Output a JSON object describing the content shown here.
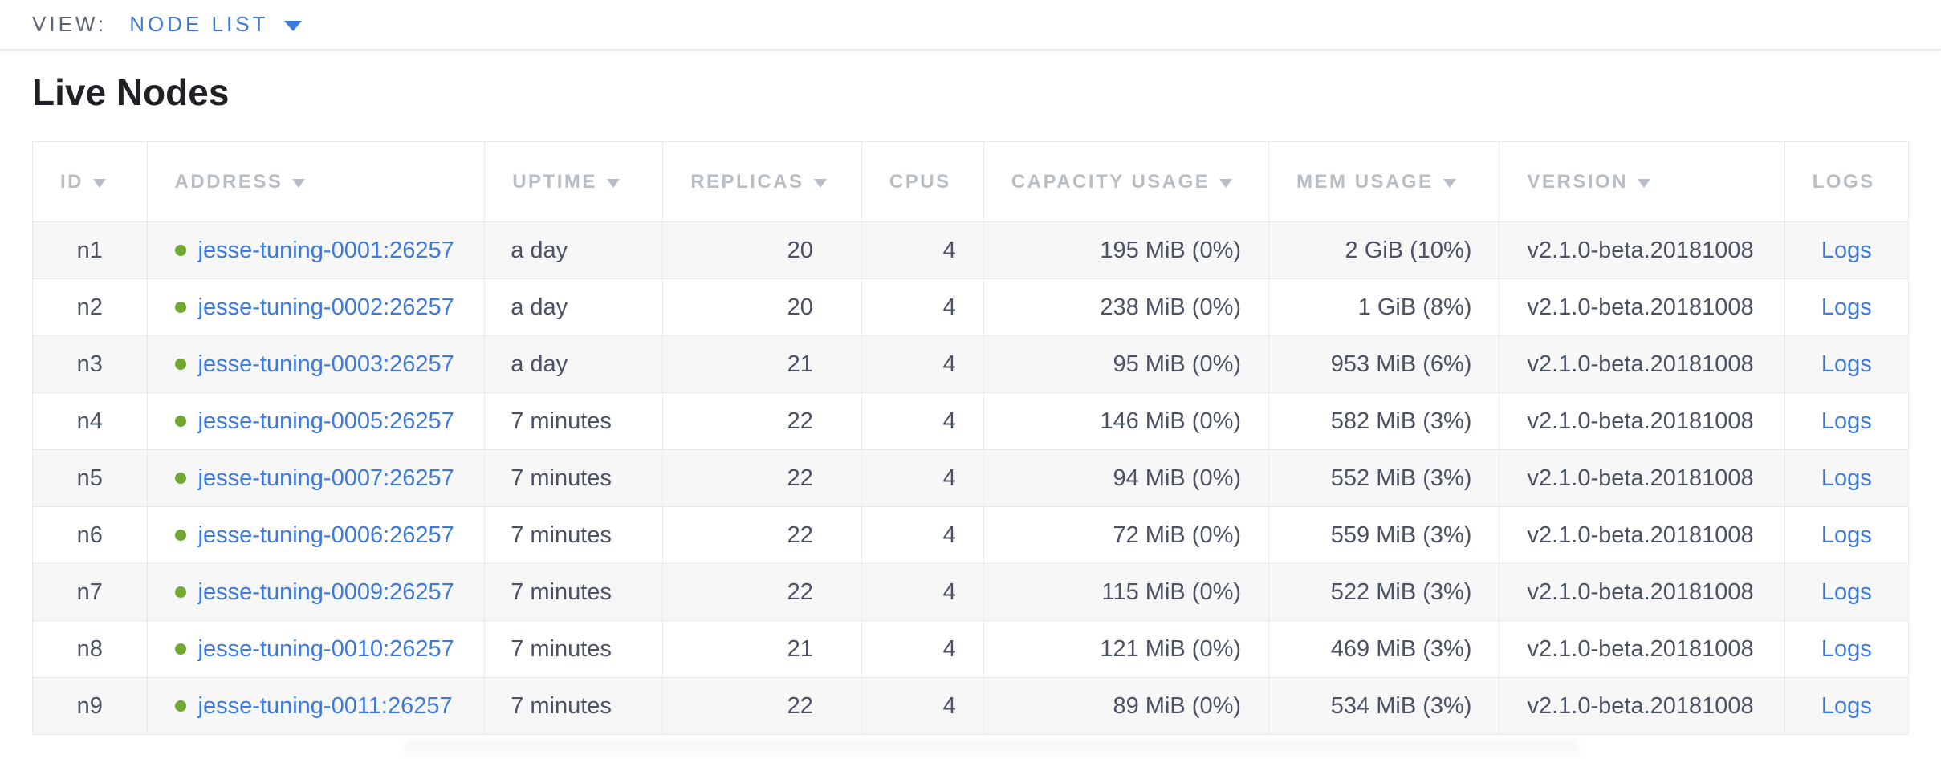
{
  "view_bar": {
    "label": "VIEW:",
    "selected": "NODE LIST"
  },
  "page": {
    "title": "Live Nodes"
  },
  "table": {
    "columns": [
      {
        "label": "ID",
        "sortable": true
      },
      {
        "label": "ADDRESS",
        "sortable": true
      },
      {
        "label": "UPTIME",
        "sortable": true
      },
      {
        "label": "REPLICAS",
        "sortable": true
      },
      {
        "label": "CPUS",
        "sortable": false
      },
      {
        "label": "CAPACITY USAGE",
        "sortable": true
      },
      {
        "label": "MEM USAGE",
        "sortable": true
      },
      {
        "label": "VERSION",
        "sortable": true
      },
      {
        "label": "LOGS",
        "sortable": false
      }
    ],
    "rows": [
      {
        "id": "n1",
        "address": "jesse-tuning-0001:26257",
        "uptime": "a day",
        "replicas": "20",
        "cpus": "4",
        "capacity": "195 MiB (0%)",
        "mem": "2 GiB (10%)",
        "version": "v2.1.0-beta.20181008",
        "logs": "Logs"
      },
      {
        "id": "n2",
        "address": "jesse-tuning-0002:26257",
        "uptime": "a day",
        "replicas": "20",
        "cpus": "4",
        "capacity": "238 MiB (0%)",
        "mem": "1 GiB (8%)",
        "version": "v2.1.0-beta.20181008",
        "logs": "Logs"
      },
      {
        "id": "n3",
        "address": "jesse-tuning-0003:26257",
        "uptime": "a day",
        "replicas": "21",
        "cpus": "4",
        "capacity": "95 MiB (0%)",
        "mem": "953 MiB (6%)",
        "version": "v2.1.0-beta.20181008",
        "logs": "Logs"
      },
      {
        "id": "n4",
        "address": "jesse-tuning-0005:26257",
        "uptime": "7 minutes",
        "replicas": "22",
        "cpus": "4",
        "capacity": "146 MiB (0%)",
        "mem": "582 MiB (3%)",
        "version": "v2.1.0-beta.20181008",
        "logs": "Logs"
      },
      {
        "id": "n5",
        "address": "jesse-tuning-0007:26257",
        "uptime": "7 minutes",
        "replicas": "22",
        "cpus": "4",
        "capacity": "94 MiB (0%)",
        "mem": "552 MiB (3%)",
        "version": "v2.1.0-beta.20181008",
        "logs": "Logs"
      },
      {
        "id": "n6",
        "address": "jesse-tuning-0006:26257",
        "uptime": "7 minutes",
        "replicas": "22",
        "cpus": "4",
        "capacity": "72 MiB (0%)",
        "mem": "559 MiB (3%)",
        "version": "v2.1.0-beta.20181008",
        "logs": "Logs"
      },
      {
        "id": "n7",
        "address": "jesse-tuning-0009:26257",
        "uptime": "7 minutes",
        "replicas": "22",
        "cpus": "4",
        "capacity": "115 MiB (0%)",
        "mem": "522 MiB (3%)",
        "version": "v2.1.0-beta.20181008",
        "logs": "Logs"
      },
      {
        "id": "n8",
        "address": "jesse-tuning-0010:26257",
        "uptime": "7 minutes",
        "replicas": "21",
        "cpus": "4",
        "capacity": "121 MiB (0%)",
        "mem": "469 MiB (3%)",
        "version": "v2.1.0-beta.20181008",
        "logs": "Logs"
      },
      {
        "id": "n9",
        "address": "jesse-tuning-0011:26257",
        "uptime": "7 minutes",
        "replicas": "22",
        "cpus": "4",
        "capacity": "89 MiB (0%)",
        "mem": "534 MiB (3%)",
        "version": "v2.1.0-beta.20181008",
        "logs": "Logs"
      }
    ]
  },
  "colors": {
    "link_blue": "#3e7adc",
    "view_label_gray": "#5a6270",
    "header_gray": "#b9bdc4",
    "cell_text": "#4a5263",
    "title_text": "#1f2126",
    "node_green": "#71a832",
    "row_stripe": "#f7f7f7",
    "grid_line": "#e9e9e9"
  }
}
